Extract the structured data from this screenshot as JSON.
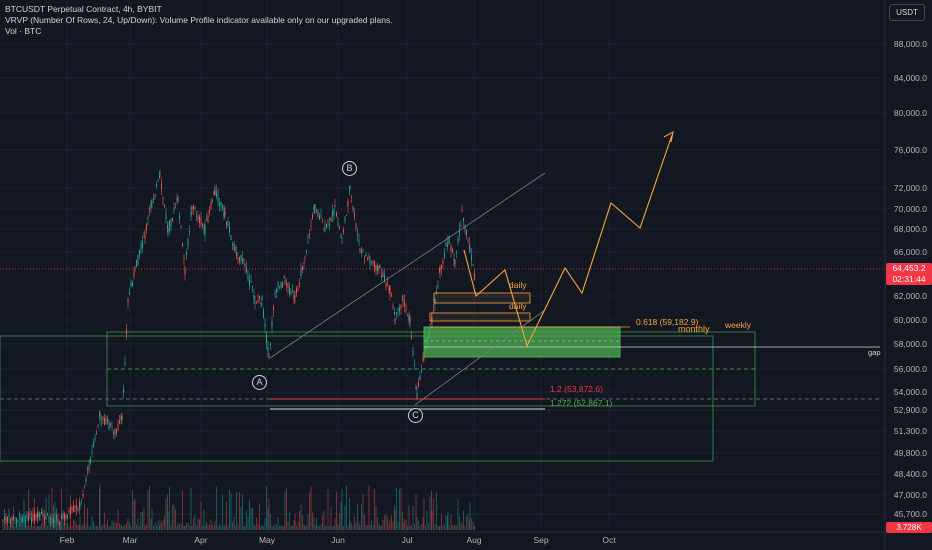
{
  "legend": {
    "title": "BTCUSDT Perpetual Contract, 4h, BYBIT",
    "vrvp": "VRVP (Number Of Rows, 24, Up/Down): Volume Profile indicator available only on our upgraded plans.",
    "volume": "Vol · BTC"
  },
  "currency_button": "USDT",
  "y_axis": [
    "88,000.0",
    "84,000.0",
    "80,000.0",
    "76,000.0",
    "72,000.0",
    "70,000.0",
    "68,000.0",
    "66,000.0",
    "62,000.0",
    "60,000.0",
    "58,000.0",
    "56,000.0",
    "54,000.0",
    "52,900.0",
    "51,300.0",
    "49,800.0",
    "48,400.0",
    "47,000.0",
    "45,700.0"
  ],
  "x_axis": [
    "Feb",
    "Mar",
    "Apr",
    "May",
    "Jun",
    "Jul",
    "Aug",
    "Sep",
    "Oct"
  ],
  "price_tag": {
    "price": "64,453.2",
    "countdown": "02:31:44"
  },
  "volume_tag": "3.728K",
  "annotations": {
    "wave_b": "B",
    "wave_a": "A",
    "wave_c": "C",
    "daily_1": "daily",
    "daily_2": "daily",
    "fib_0618": "0.618 (59,182.9)",
    "monthly": "monthly",
    "weekly": "weekly",
    "gap": "gap",
    "fib_12": "1.2 (53,872.6)",
    "fib_1272": "1.272 (52,867.1)"
  },
  "colors": {
    "background": "#131722",
    "up": "#26a69a",
    "down": "#ef5350",
    "orange": "#f7a440",
    "green_zone": "#4caf50",
    "red_line": "#f23645"
  }
}
